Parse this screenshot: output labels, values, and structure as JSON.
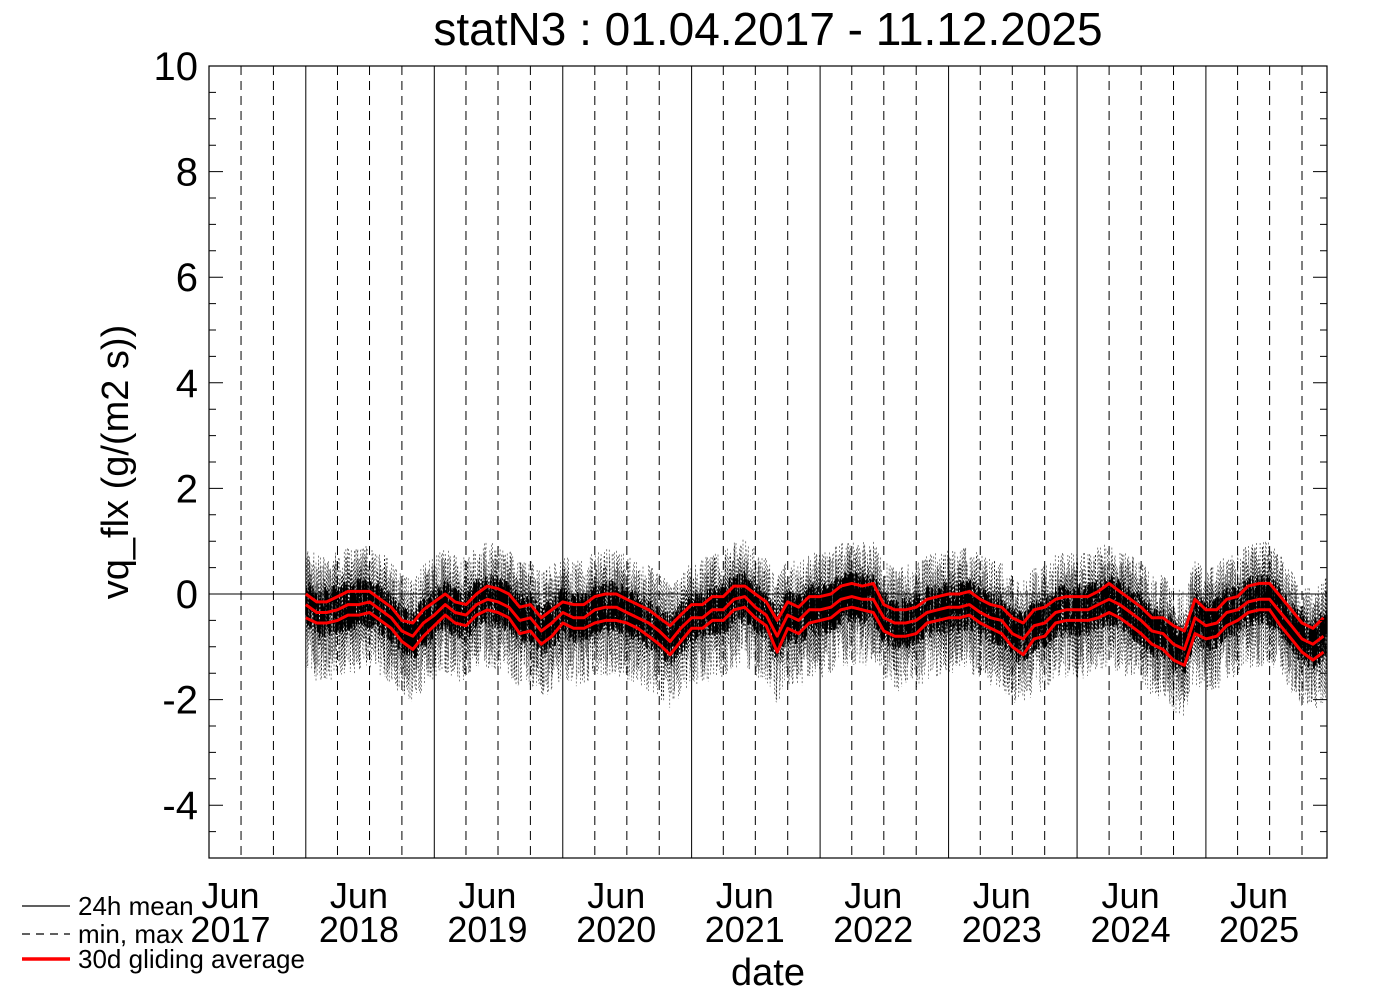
{
  "chart_data": {
    "type": "line",
    "title": "statN3 : 01.04.2017 - 11.12.2025",
    "xlabel": "date",
    "ylabel": "vq_flx (g/(m2 s))",
    "xlim": [
      "2017-04-01",
      "2025-12-11"
    ],
    "ylim": [
      -5,
      10
    ],
    "y_ticks": [
      "10",
      "8",
      "6",
      "4",
      "2",
      "0",
      "-2",
      "-4"
    ],
    "y_tick_values": [
      10,
      8,
      6,
      4,
      2,
      0,
      -2,
      -4
    ],
    "x_tick_labels": [
      {
        "month": "Jun",
        "year": "2017",
        "date": "2017-06-01"
      },
      {
        "month": "Jun",
        "year": "2018",
        "date": "2018-06-01"
      },
      {
        "month": "Jun",
        "year": "2019",
        "date": "2019-06-01"
      },
      {
        "month": "Jun",
        "year": "2020",
        "date": "2020-06-01"
      },
      {
        "month": "Jun",
        "year": "2021",
        "date": "2021-06-01"
      },
      {
        "month": "Jun",
        "year": "2022",
        "date": "2022-06-01"
      },
      {
        "month": "Jun",
        "year": "2023",
        "date": "2023-06-01"
      },
      {
        "month": "Jun",
        "year": "2024",
        "date": "2024-06-01"
      },
      {
        "month": "Jun",
        "year": "2025",
        "date": "2025-06-01"
      }
    ],
    "year_lines": [
      "2018-01-01",
      "2019-01-01",
      "2020-01-01",
      "2021-01-01",
      "2022-01-01",
      "2023-01-01",
      "2024-01-01",
      "2025-01-01"
    ],
    "quarter_lines": [
      "2017-04-01",
      "2017-07-01",
      "2017-10-01",
      "2018-04-01",
      "2018-07-01",
      "2018-10-01",
      "2019-04-01",
      "2019-07-01",
      "2019-10-01",
      "2020-04-01",
      "2020-07-01",
      "2020-10-01",
      "2021-04-01",
      "2021-07-01",
      "2021-10-01",
      "2022-04-01",
      "2022-07-01",
      "2022-10-01",
      "2023-04-01",
      "2023-07-01",
      "2023-10-01",
      "2024-04-01",
      "2024-07-01",
      "2024-10-01",
      "2025-04-01",
      "2025-07-01",
      "2025-10-01"
    ],
    "zero_line": 0,
    "legend": {
      "placement": "bottom-left",
      "entries": [
        {
          "label": "24h mean",
          "style": "solid",
          "color": "#000000"
        },
        {
          "label": "min, max",
          "style": "dashed",
          "color": "#000000"
        },
        {
          "label": "30d gliding average",
          "style": "solid",
          "color": "#ff0000"
        }
      ]
    },
    "series": [
      {
        "name": "30d gliding average",
        "role": "mean",
        "color": "#ff0000",
        "x": [
          "2018-01-01",
          "2018-02-01",
          "2018-03-01",
          "2018-04-01",
          "2018-05-01",
          "2018-06-01",
          "2018-07-01",
          "2018-08-01",
          "2018-09-01",
          "2018-10-01",
          "2018-11-01",
          "2018-12-01",
          "2019-01-01",
          "2019-02-01",
          "2019-03-01",
          "2019-04-01",
          "2019-05-01",
          "2019-06-01",
          "2019-07-01",
          "2019-08-01",
          "2019-09-01",
          "2019-10-01",
          "2019-11-01",
          "2019-12-01",
          "2020-01-01",
          "2020-02-01",
          "2020-03-01",
          "2020-04-01",
          "2020-05-01",
          "2020-06-01",
          "2020-07-01",
          "2020-08-01",
          "2020-09-01",
          "2020-10-01",
          "2020-11-01",
          "2020-12-01",
          "2021-01-01",
          "2021-02-01",
          "2021-03-01",
          "2021-04-01",
          "2021-05-01",
          "2021-06-01",
          "2021-07-01",
          "2021-08-01",
          "2021-09-01",
          "2021-10-01",
          "2021-11-01",
          "2021-12-01",
          "2022-01-01",
          "2022-02-01",
          "2022-03-01",
          "2022-04-01",
          "2022-05-01",
          "2022-06-01",
          "2022-07-01",
          "2022-08-01",
          "2022-09-01",
          "2022-10-01",
          "2022-11-01",
          "2022-12-01",
          "2023-01-01",
          "2023-02-01",
          "2023-03-01",
          "2023-04-01",
          "2023-05-01",
          "2023-06-01",
          "2023-07-01",
          "2023-08-01",
          "2023-09-01",
          "2023-10-01",
          "2023-11-01",
          "2023-12-01",
          "2024-01-01",
          "2024-02-01",
          "2024-03-01",
          "2024-04-01",
          "2024-05-01",
          "2024-06-01",
          "2024-07-01",
          "2024-08-01",
          "2024-09-01",
          "2024-10-01",
          "2024-11-01",
          "2024-12-01",
          "2025-01-01",
          "2025-02-01",
          "2025-03-01",
          "2025-04-01",
          "2025-05-01",
          "2025-06-01",
          "2025-07-01",
          "2025-08-01",
          "2025-09-01",
          "2025-10-01",
          "2025-11-01",
          "2025-12-01"
        ],
        "values": [
          -0.2,
          -0.35,
          -0.35,
          -0.3,
          -0.2,
          -0.2,
          -0.15,
          -0.3,
          -0.45,
          -0.7,
          -0.8,
          -0.55,
          -0.4,
          -0.2,
          -0.35,
          -0.4,
          -0.2,
          -0.1,
          -0.15,
          -0.25,
          -0.5,
          -0.45,
          -0.7,
          -0.55,
          -0.35,
          -0.45,
          -0.45,
          -0.3,
          -0.25,
          -0.25,
          -0.35,
          -0.45,
          -0.55,
          -0.7,
          -0.9,
          -0.65,
          -0.45,
          -0.45,
          -0.3,
          -0.3,
          -0.1,
          -0.05,
          -0.25,
          -0.4,
          -0.8,
          -0.4,
          -0.5,
          -0.3,
          -0.3,
          -0.25,
          -0.1,
          -0.05,
          -0.1,
          -0.1,
          -0.45,
          -0.55,
          -0.55,
          -0.5,
          -0.35,
          -0.3,
          -0.25,
          -0.25,
          -0.2,
          -0.35,
          -0.45,
          -0.5,
          -0.75,
          -0.85,
          -0.6,
          -0.55,
          -0.35,
          -0.3,
          -0.3,
          -0.3,
          -0.2,
          -0.1,
          -0.2,
          -0.35,
          -0.5,
          -0.7,
          -0.75,
          -0.95,
          -1.05,
          -0.45,
          -0.6,
          -0.55,
          -0.35,
          -0.3,
          -0.15,
          -0.1,
          -0.1,
          -0.35,
          -0.6,
          -0.85,
          -0.95,
          -0.8
        ]
      },
      {
        "name": "30d gliding average",
        "role": "upper",
        "color": "#ff0000",
        "x": [
          "2018-01-01",
          "2018-02-01",
          "2018-03-01",
          "2018-04-01",
          "2018-05-01",
          "2018-06-01",
          "2018-07-01",
          "2018-08-01",
          "2018-09-01",
          "2018-10-01",
          "2018-11-01",
          "2018-12-01",
          "2019-01-01",
          "2019-02-01",
          "2019-03-01",
          "2019-04-01",
          "2019-05-01",
          "2019-06-01",
          "2019-07-01",
          "2019-08-01",
          "2019-09-01",
          "2019-10-01",
          "2019-11-01",
          "2019-12-01",
          "2020-01-01",
          "2020-02-01",
          "2020-03-01",
          "2020-04-01",
          "2020-05-01",
          "2020-06-01",
          "2020-07-01",
          "2020-08-01",
          "2020-09-01",
          "2020-10-01",
          "2020-11-01",
          "2020-12-01",
          "2021-01-01",
          "2021-02-01",
          "2021-03-01",
          "2021-04-01",
          "2021-05-01",
          "2021-06-01",
          "2021-07-01",
          "2021-08-01",
          "2021-09-01",
          "2021-10-01",
          "2021-11-01",
          "2021-12-01",
          "2022-01-01",
          "2022-02-01",
          "2022-03-01",
          "2022-04-01",
          "2022-05-01",
          "2022-06-01",
          "2022-07-01",
          "2022-08-01",
          "2022-09-01",
          "2022-10-01",
          "2022-11-01",
          "2022-12-01",
          "2023-01-01",
          "2023-02-01",
          "2023-03-01",
          "2023-04-01",
          "2023-05-01",
          "2023-06-01",
          "2023-07-01",
          "2023-08-01",
          "2023-09-01",
          "2023-10-01",
          "2023-11-01",
          "2023-12-01",
          "2024-01-01",
          "2024-02-01",
          "2024-03-01",
          "2024-04-01",
          "2024-05-01",
          "2024-06-01",
          "2024-07-01",
          "2024-08-01",
          "2024-09-01",
          "2024-10-01",
          "2024-11-01",
          "2024-12-01",
          "2025-01-01",
          "2025-02-01",
          "2025-03-01",
          "2025-04-01",
          "2025-05-01",
          "2025-06-01",
          "2025-07-01",
          "2025-08-01",
          "2025-09-01",
          "2025-10-01",
          "2025-11-01",
          "2025-12-01"
        ],
        "values": [
          0.0,
          -0.15,
          -0.15,
          -0.05,
          0.05,
          0.05,
          0.05,
          -0.1,
          -0.25,
          -0.5,
          -0.55,
          -0.3,
          -0.15,
          0.0,
          -0.15,
          -0.2,
          0.0,
          0.15,
          0.1,
          0.0,
          -0.25,
          -0.2,
          -0.45,
          -0.3,
          -0.15,
          -0.2,
          -0.2,
          -0.05,
          0.0,
          0.0,
          -0.1,
          -0.2,
          -0.3,
          -0.45,
          -0.6,
          -0.4,
          -0.2,
          -0.2,
          -0.05,
          -0.05,
          0.15,
          0.15,
          0.0,
          -0.15,
          -0.5,
          -0.15,
          -0.25,
          -0.05,
          -0.05,
          0.0,
          0.15,
          0.2,
          0.15,
          0.2,
          -0.2,
          -0.3,
          -0.3,
          -0.25,
          -0.1,
          -0.05,
          0.0,
          0.0,
          0.05,
          -0.1,
          -0.2,
          -0.25,
          -0.45,
          -0.55,
          -0.3,
          -0.25,
          -0.1,
          -0.05,
          -0.05,
          -0.05,
          0.05,
          0.2,
          0.05,
          -0.1,
          -0.25,
          -0.45,
          -0.45,
          -0.6,
          -0.7,
          -0.1,
          -0.3,
          -0.3,
          -0.1,
          -0.05,
          0.15,
          0.2,
          0.2,
          -0.05,
          -0.3,
          -0.55,
          -0.65,
          -0.45
        ]
      },
      {
        "name": "30d gliding average",
        "role": "lower",
        "color": "#ff0000",
        "x": [
          "2018-01-01",
          "2018-02-01",
          "2018-03-01",
          "2018-04-01",
          "2018-05-01",
          "2018-06-01",
          "2018-07-01",
          "2018-08-01",
          "2018-09-01",
          "2018-10-01",
          "2018-11-01",
          "2018-12-01",
          "2019-01-01",
          "2019-02-01",
          "2019-03-01",
          "2019-04-01",
          "2019-05-01",
          "2019-06-01",
          "2019-07-01",
          "2019-08-01",
          "2019-09-01",
          "2019-10-01",
          "2019-11-01",
          "2019-12-01",
          "2020-01-01",
          "2020-02-01",
          "2020-03-01",
          "2020-04-01",
          "2020-05-01",
          "2020-06-01",
          "2020-07-01",
          "2020-08-01",
          "2020-09-01",
          "2020-10-01",
          "2020-11-01",
          "2020-12-01",
          "2021-01-01",
          "2021-02-01",
          "2021-03-01",
          "2021-04-01",
          "2021-05-01",
          "2021-06-01",
          "2021-07-01",
          "2021-08-01",
          "2021-09-01",
          "2021-10-01",
          "2021-11-01",
          "2021-12-01",
          "2022-01-01",
          "2022-02-01",
          "2022-03-01",
          "2022-04-01",
          "2022-05-01",
          "2022-06-01",
          "2022-07-01",
          "2022-08-01",
          "2022-09-01",
          "2022-10-01",
          "2022-11-01",
          "2022-12-01",
          "2023-01-01",
          "2023-02-01",
          "2023-03-01",
          "2023-04-01",
          "2023-05-01",
          "2023-06-01",
          "2023-07-01",
          "2023-08-01",
          "2023-09-01",
          "2023-10-01",
          "2023-11-01",
          "2023-12-01",
          "2024-01-01",
          "2024-02-01",
          "2024-03-01",
          "2024-04-01",
          "2024-05-01",
          "2024-06-01",
          "2024-07-01",
          "2024-08-01",
          "2024-09-01",
          "2024-10-01",
          "2024-11-01",
          "2024-12-01",
          "2025-01-01",
          "2025-02-01",
          "2025-03-01",
          "2025-04-01",
          "2025-05-01",
          "2025-06-01",
          "2025-07-01",
          "2025-08-01",
          "2025-09-01",
          "2025-10-01",
          "2025-11-01",
          "2025-12-01"
        ],
        "values": [
          -0.45,
          -0.55,
          -0.55,
          -0.5,
          -0.4,
          -0.4,
          -0.35,
          -0.5,
          -0.65,
          -0.9,
          -1.05,
          -0.8,
          -0.6,
          -0.4,
          -0.55,
          -0.6,
          -0.4,
          -0.3,
          -0.35,
          -0.45,
          -0.75,
          -0.7,
          -0.95,
          -0.8,
          -0.55,
          -0.65,
          -0.65,
          -0.55,
          -0.5,
          -0.5,
          -0.55,
          -0.65,
          -0.8,
          -0.95,
          -1.15,
          -0.9,
          -0.65,
          -0.65,
          -0.5,
          -0.5,
          -0.3,
          -0.25,
          -0.45,
          -0.6,
          -1.1,
          -0.65,
          -0.75,
          -0.55,
          -0.5,
          -0.45,
          -0.3,
          -0.25,
          -0.3,
          -0.35,
          -0.7,
          -0.8,
          -0.8,
          -0.75,
          -0.55,
          -0.5,
          -0.45,
          -0.45,
          -0.4,
          -0.55,
          -0.65,
          -0.75,
          -1.0,
          -1.15,
          -0.85,
          -0.8,
          -0.55,
          -0.5,
          -0.5,
          -0.5,
          -0.45,
          -0.35,
          -0.45,
          -0.6,
          -0.75,
          -0.95,
          -1.05,
          -1.25,
          -1.35,
          -0.75,
          -0.85,
          -0.8,
          -0.6,
          -0.5,
          -0.35,
          -0.3,
          -0.3,
          -0.6,
          -0.85,
          -1.1,
          -1.25,
          -1.1
        ]
      }
    ]
  }
}
